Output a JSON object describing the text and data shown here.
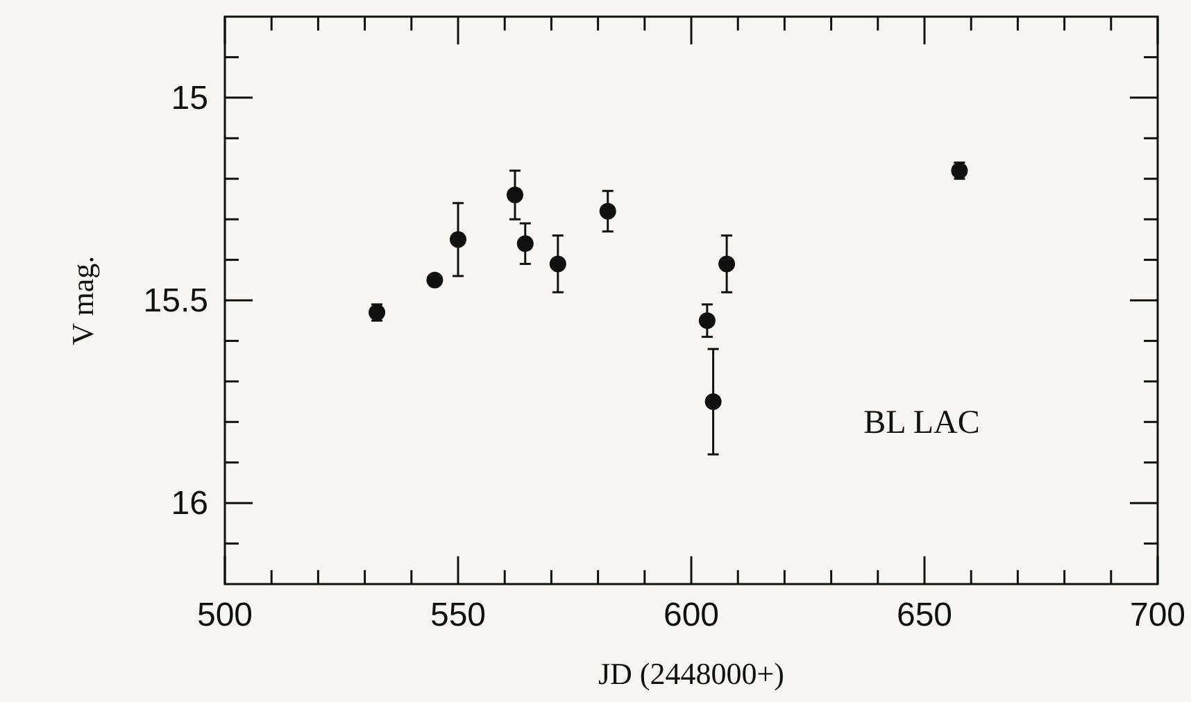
{
  "chart_data": {
    "type": "scatter",
    "xlabel": "JD (2448000+)",
    "ylabel": "V mag.",
    "annotations": [
      "BL LAC"
    ],
    "x": [
      532.6,
      545.0,
      550.0,
      562.2,
      564.4,
      571.4,
      582.1,
      603.4,
      604.7,
      607.6,
      657.5
    ],
    "series": [
      {
        "color": "#111111",
        "values": [
          15.53,
          15.45,
          15.35,
          15.24,
          15.36,
          15.41,
          15.28,
          15.55,
          15.75,
          15.41,
          15.18
        ],
        "errors": [
          0.02,
          null,
          0.09,
          0.06,
          0.05,
          0.07,
          0.05,
          0.04,
          0.13,
          0.07,
          0.02
        ]
      }
    ],
    "marker": "circle",
    "xlim": [
      500,
      700
    ],
    "ylim": [
      16.2,
      14.8
    ],
    "xticks": [
      500,
      {
        "value": 510,
        "label": null
      },
      {
        "value": 520,
        "label": null
      },
      {
        "value": 530,
        "label": null
      },
      {
        "value": 540,
        "label": null
      },
      550,
      {
        "value": 560,
        "label": null
      },
      {
        "value": 570,
        "label": null
      },
      {
        "value": 580,
        "label": null
      },
      {
        "value": 590,
        "label": null
      },
      600,
      {
        "value": 610,
        "label": null
      },
      {
        "value": 620,
        "label": null
      },
      {
        "value": 630,
        "label": null
      },
      {
        "value": 640,
        "label": null
      },
      650,
      {
        "value": 660,
        "label": null
      },
      {
        "value": 670,
        "label": null
      },
      {
        "value": 680,
        "label": null
      },
      {
        "value": 690,
        "label": null
      },
      700
    ],
    "yticks": [
      {
        "value": 14.9,
        "label": null
      },
      15,
      {
        "value": 15.1,
        "label": null
      },
      {
        "value": 15.2,
        "label": null
      },
      {
        "value": 15.3,
        "label": null
      },
      {
        "value": 15.4,
        "label": null
      },
      15.5,
      {
        "value": 15.6,
        "label": null
      },
      {
        "value": 15.7,
        "label": null
      },
      {
        "value": 15.8,
        "label": null
      },
      {
        "value": 15.9,
        "label": null
      },
      16,
      {
        "value": 16.1,
        "label": null
      }
    ],
    "grid": false
  }
}
